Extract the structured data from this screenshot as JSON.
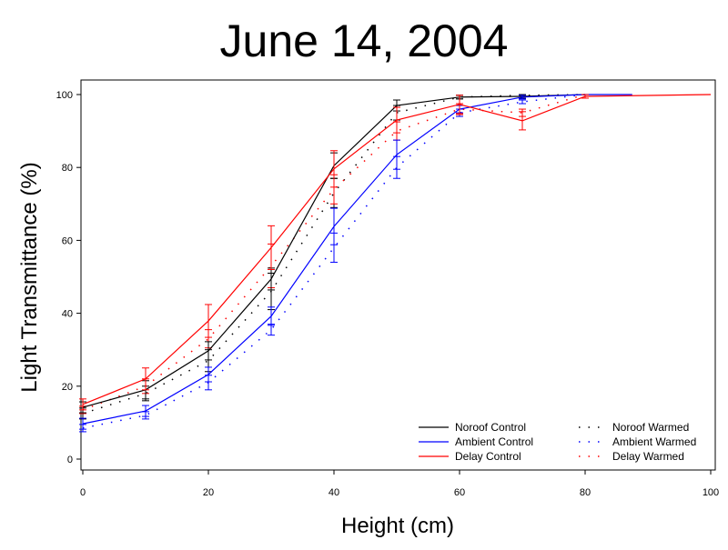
{
  "chart_data": {
    "type": "line",
    "title": "June 14, 2004",
    "xlabel": "Height (cm)",
    "ylabel": "Light Transmittance (%)",
    "xlim": [
      0,
      100
    ],
    "ylim": [
      0,
      100
    ],
    "xticks": [
      0,
      20,
      40,
      60,
      80,
      100
    ],
    "yticks": [
      0,
      20,
      40,
      60,
      80,
      100
    ],
    "grid": false,
    "legend_position": "bottom-right",
    "series": [
      {
        "name": "Noroof Control",
        "color": "#000000",
        "style": "solid",
        "x": [
          0,
          10,
          20,
          30,
          40,
          50,
          60,
          70,
          80
        ],
        "y": [
          14.2,
          19,
          29.7,
          49.4,
          80.5,
          97,
          99.3,
          99.5,
          100
        ],
        "err": [
          1.5,
          2.5,
          2.5,
          3,
          3.5,
          1.5,
          0.5,
          0.5,
          0
        ]
      },
      {
        "name": "Ambient Control",
        "color": "#0000ff",
        "style": "solid",
        "x": [
          0,
          10,
          20,
          30,
          40,
          50,
          60,
          70,
          80,
          87.5
        ],
        "y": [
          9.7,
          13.2,
          23.2,
          39.2,
          63.8,
          83.5,
          96,
          99.3,
          100,
          100
        ],
        "err": [
          1.5,
          1.5,
          2,
          2.5,
          5,
          4,
          1,
          0.5,
          0,
          0
        ]
      },
      {
        "name": "Delay Control",
        "color": "#ff0000",
        "style": "solid",
        "x": [
          0,
          10,
          20,
          30,
          40,
          50,
          60,
          70,
          80,
          100
        ],
        "y": [
          15,
          22,
          37.9,
          58,
          79.6,
          93,
          97.3,
          92.8,
          99.5,
          100
        ],
        "err": [
          1.5,
          3,
          4.5,
          6,
          5,
          3.5,
          2.5,
          2.5,
          0.5,
          0
        ]
      },
      {
        "name": "Noroof Warmed",
        "color": "#000000",
        "style": "dotted",
        "x": [
          0,
          10,
          20,
          30,
          40,
          50,
          60,
          70,
          80
        ],
        "y": [
          12.5,
          18,
          27,
          46,
          73,
          95,
          99.3,
          99.8,
          100
        ],
        "err": [
          1.5,
          2,
          3,
          5,
          4,
          2,
          0.5,
          0.3,
          0
        ]
      },
      {
        "name": "Ambient Warmed",
        "color": "#0000ff",
        "style": "dotted",
        "x": [
          0,
          10,
          20,
          30,
          40,
          50,
          60,
          70,
          80
        ],
        "y": [
          8.5,
          12,
          21,
          35.5,
          58,
          80,
          95,
          98,
          100
        ],
        "err": [
          1,
          1,
          2,
          1.5,
          4,
          3,
          1,
          0.5,
          0
        ]
      },
      {
        "name": "Delay Warmed",
        "color": "#ff0000",
        "style": "dotted",
        "x": [
          0,
          10,
          20,
          30,
          40,
          50,
          60,
          70,
          80
        ],
        "y": [
          13.5,
          20,
          33,
          53,
          74,
          90,
          96,
          95,
          100
        ],
        "err": [
          1,
          2,
          2.5,
          6,
          4,
          2.5,
          1.5,
          1,
          0
        ]
      }
    ]
  }
}
